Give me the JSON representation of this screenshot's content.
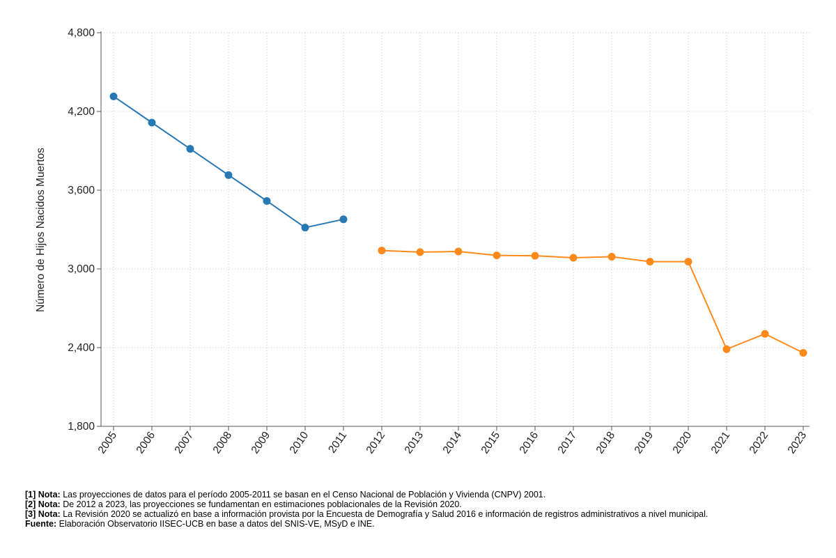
{
  "chart_data": {
    "type": "line",
    "ylabel": "Número de Hijos Nacidos Muertos",
    "xlabel": "",
    "ylim": [
      1800,
      4800
    ],
    "yticks": [
      1800,
      2400,
      3000,
      3600,
      4200,
      4800
    ],
    "ytick_labels": [
      "1,800",
      "2,400",
      "3,000",
      "3,600",
      "4,200",
      "4,800"
    ],
    "grid": true,
    "x": [
      2005,
      2006,
      2007,
      2008,
      2009,
      2010,
      2011,
      2012,
      2013,
      2014,
      2015,
      2016,
      2017,
      2018,
      2019,
      2020,
      2021,
      2022,
      2023
    ],
    "series": [
      {
        "color": "#2878b4",
        "x": [
          2005,
          2006,
          2007,
          2008,
          2009,
          2010,
          2011
        ],
        "values": [
          4315,
          4115,
          3915,
          3715,
          3518,
          3315,
          3378
        ]
      },
      {
        "color": "#ff8a1c",
        "x": [
          2012,
          2013,
          2014,
          2015,
          2016,
          2017,
          2018,
          2019,
          2020,
          2021,
          2022,
          2023
        ],
        "values": [
          3140,
          3128,
          3133,
          3103,
          3100,
          3085,
          3093,
          3055,
          3055,
          2388,
          2505,
          2360
        ]
      }
    ]
  },
  "notes": [
    {
      "label": "[1] Nota:",
      "text": "Las proyecciones de datos para el período 2005-2011 se basan en el Censo Nacional de Población y Vivienda (CNPV) 2001."
    },
    {
      "label": "[2] Nota:",
      "text": "De 2012 a 2023, las proyecciones se fundamentan en estimaciones poblacionales de la Revisión 2020."
    },
    {
      "label": "[3] Nota:",
      "text": "La Revisión 2020 se actualizó en base a información provista por la Encuesta de Demografía y Salud 2016 e información de registros administrativos a nivel municipal."
    },
    {
      "label": "Fuente:",
      "text": "Elaboración Observatorio IISEC-UCB en base a datos del SNIS-VE, MSyD e INE."
    }
  ]
}
